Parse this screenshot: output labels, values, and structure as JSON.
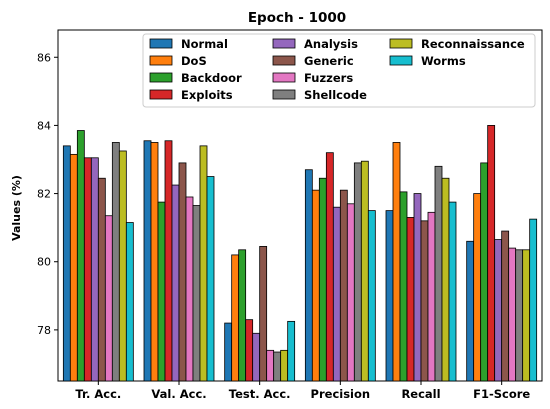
{
  "chart_data": {
    "type": "bar",
    "title": "Epoch - 1000",
    "xlabel": "",
    "ylabel": "Values (%)",
    "ylim": [
      76.5,
      86.8
    ],
    "yticks": [
      78,
      80,
      82,
      84,
      86
    ],
    "grid": false,
    "legend_position": "top-right",
    "legend_columns": 3,
    "categories": [
      "Tr. Acc.",
      "Val. Acc.",
      "Test. Acc.",
      "Precision",
      "Recall",
      "F1-Score"
    ],
    "series": [
      {
        "name": "Normal",
        "color": "#1f77b4",
        "values": [
          83.4,
          83.55,
          78.2,
          82.7,
          81.5,
          80.6
        ]
      },
      {
        "name": "DoS",
        "color": "#ff7f0e",
        "values": [
          83.15,
          83.5,
          80.2,
          82.1,
          83.5,
          82.0
        ]
      },
      {
        "name": "Backdoor",
        "color": "#2ca02c",
        "values": [
          83.85,
          81.75,
          80.35,
          82.45,
          82.05,
          82.9
        ]
      },
      {
        "name": "Exploits",
        "color": "#d62728",
        "values": [
          83.05,
          83.55,
          78.3,
          83.2,
          81.3,
          84.0
        ]
      },
      {
        "name": "Analysis",
        "color": "#9467bd",
        "values": [
          83.05,
          82.25,
          77.9,
          81.6,
          82.0,
          80.65
        ]
      },
      {
        "name": "Generic",
        "color": "#8c564b",
        "values": [
          82.45,
          82.9,
          80.45,
          82.1,
          81.2,
          80.9
        ]
      },
      {
        "name": "Fuzzers",
        "color": "#e377c2",
        "values": [
          81.35,
          81.9,
          77.4,
          81.7,
          81.45,
          80.4
        ]
      },
      {
        "name": "Shellcode",
        "color": "#7f7f7f",
        "values": [
          83.5,
          81.65,
          77.35,
          82.9,
          82.8,
          80.35
        ]
      },
      {
        "name": "Reconnaissance",
        "color": "#bcbd22",
        "values": [
          83.25,
          83.4,
          77.4,
          82.95,
          82.45,
          80.35
        ]
      },
      {
        "name": "Worms",
        "color": "#17becf",
        "values": [
          81.15,
          82.5,
          78.25,
          81.5,
          81.75,
          81.25
        ]
      }
    ]
  }
}
